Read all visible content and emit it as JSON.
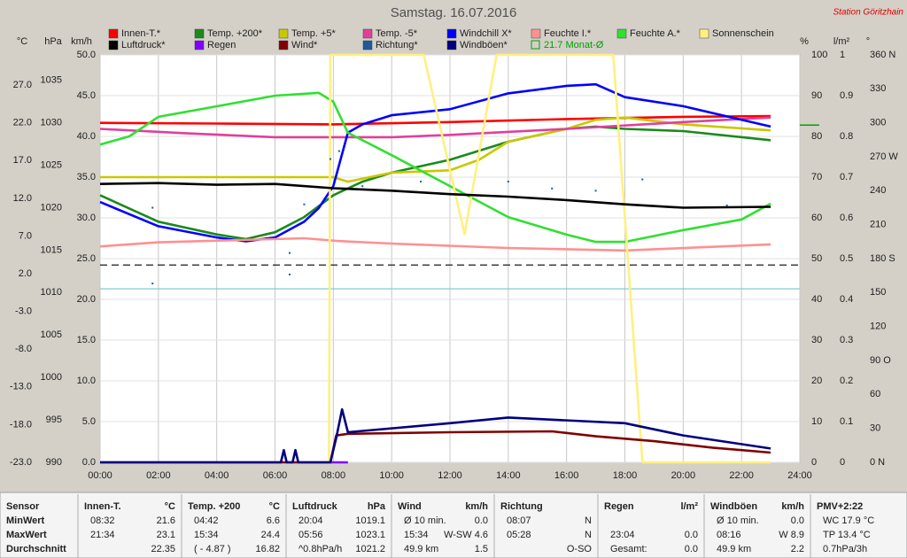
{
  "chart_data": {
    "type": "line",
    "title": "Samstag. 16.07.2016",
    "station": "Station Göritzhain",
    "xlim": [
      0,
      24
    ],
    "xticks": [
      {
        "value": 0,
        "label": "00:00"
      },
      {
        "value": 2,
        "label": "02:00"
      },
      {
        "value": 4,
        "label": "04:00"
      },
      {
        "value": 6,
        "label": "06:00"
      },
      {
        "value": 8,
        "label": "08:00"
      },
      {
        "value": 10,
        "label": "10:00"
      },
      {
        "value": 12,
        "label": "12:00"
      },
      {
        "value": 14,
        "label": "14:00"
      },
      {
        "value": 16,
        "label": "16:00"
      },
      {
        "value": 18,
        "label": "18:00"
      },
      {
        "value": 20,
        "label": "20:00"
      },
      {
        "value": 22,
        "label": "22:00"
      },
      {
        "value": 24,
        "label": "24:00"
      }
    ],
    "grid": true,
    "axes": [
      {
        "label": "°C",
        "side": "left",
        "lim": [
          -23,
          31
        ],
        "ticks": [
          {
            "value": -23,
            "label": "-23.0"
          },
          {
            "value": -18,
            "label": "-18.0"
          },
          {
            "value": -13,
            "label": "-13.0"
          },
          {
            "value": -8,
            "label": "-8.0"
          },
          {
            "value": -3,
            "label": "-3.0"
          },
          {
            "value": 2,
            "label": "2.0"
          },
          {
            "value": 7,
            "label": "7.0"
          },
          {
            "value": 12,
            "label": "12.0"
          },
          {
            "value": 17,
            "label": "17.0"
          },
          {
            "value": 22,
            "label": "22.0"
          },
          {
            "value": 27,
            "label": "27.0"
          }
        ]
      },
      {
        "label": "hPa",
        "side": "left",
        "lim": [
          990,
          1038
        ],
        "ticks": [
          990,
          995,
          1000,
          1005,
          1010,
          1015,
          1020,
          1025,
          1030,
          1035
        ]
      },
      {
        "label": "km/h",
        "side": "left",
        "grid": true,
        "lim": [
          0,
          50
        ],
        "ticks": [
          {
            "value": 0,
            "label": "0.0"
          },
          {
            "value": 5,
            "label": "5.0"
          },
          {
            "value": 10,
            "label": "10.0"
          },
          {
            "value": 15,
            "label": "15.0"
          },
          {
            "value": 20,
            "label": "20.0"
          },
          {
            "value": 25,
            "label": "25.0"
          },
          {
            "value": 30,
            "label": "30.0"
          },
          {
            "value": 35,
            "label": "35.0"
          },
          {
            "value": 40,
            "label": "40.0"
          },
          {
            "value": 45,
            "label": "45.0"
          },
          {
            "value": 50,
            "label": "50.0"
          }
        ]
      },
      {
        "label": "%",
        "side": "right",
        "lim": [
          0,
          100
        ],
        "ticks": [
          0,
          10,
          20,
          30,
          40,
          50,
          60,
          70,
          80,
          90,
          100
        ]
      },
      {
        "label": "l/m²",
        "side": "right",
        "lim": [
          0,
          1
        ],
        "ticks": [
          0,
          0.1,
          0.2,
          0.3,
          0.4,
          0.5,
          0.6,
          0.7,
          0.8,
          0.9,
          1
        ]
      },
      {
        "label": "°",
        "side": "right",
        "lim": [
          0,
          360
        ],
        "ticks": [
          {
            "value": 0,
            "label": "0 N"
          },
          30,
          60,
          {
            "value": 90,
            "label": "90 O"
          },
          120,
          150,
          {
            "value": 180,
            "label": "180 S"
          },
          210,
          240,
          {
            "value": 270,
            "label": "270 W"
          },
          300,
          330,
          {
            "value": 360,
            "label": "360 N"
          }
        ]
      }
    ],
    "reference_lines": [
      {
        "axis": "hPa",
        "value": 1013.25,
        "color": "#000000",
        "dashed": true
      },
      {
        "axis": "°C",
        "value": 0,
        "color": "#70c8c8"
      }
    ],
    "monthly_average": {
      "label": "21.7 Monat-Ø",
      "value": 21.7,
      "axis": "°C",
      "color": "#00a000"
    },
    "series": [
      {
        "name": "Innen-T.*",
        "color": "#ff0000",
        "axis": "°C",
        "x": [
          0,
          4,
          8,
          12,
          16,
          20,
          23
        ],
        "values": [
          22.0,
          21.9,
          21.8,
          22.1,
          22.5,
          22.8,
          22.9
        ]
      },
      {
        "name": "Temp. +200*",
        "color": "#1a8a1a",
        "axis": "°C",
        "x": [
          0,
          2,
          4,
          5,
          6,
          7,
          8,
          9,
          10,
          12,
          14,
          16,
          17,
          18,
          20,
          23
        ],
        "values": [
          12.4,
          8.9,
          7.2,
          6.6,
          7.5,
          9.5,
          12.4,
          14.2,
          15.4,
          17.1,
          19.5,
          21.2,
          21.5,
          21.2,
          20.9,
          19.7
        ]
      },
      {
        "name": "Temp. +5*",
        "color": "#c8c800",
        "axis": "°C",
        "x": [
          0,
          8,
          8.5,
          10,
          12,
          13,
          14,
          16,
          17,
          18,
          20,
          23
        ],
        "values": [
          14.8,
          14.8,
          14.2,
          15.4,
          15.7,
          17.1,
          19.5,
          21.2,
          22.4,
          22.7,
          21.8,
          21.0
        ]
      },
      {
        "name": "Temp. -5*",
        "color": "#e0409a",
        "axis": "°C",
        "x": [
          0,
          3,
          6,
          10,
          12,
          16,
          20,
          23
        ],
        "values": [
          21.2,
          20.6,
          20.1,
          20.1,
          20.4,
          21.2,
          22.1,
          22.7
        ]
      },
      {
        "name": "Windchill X*",
        "color": "#0000ff",
        "axis": "°C",
        "x": [
          0,
          2,
          4,
          5,
          6,
          7,
          7.5,
          8,
          8.5,
          9,
          10,
          12,
          14,
          16,
          17,
          18,
          20,
          23
        ],
        "values": [
          11.5,
          8.3,
          6.8,
          6.3,
          6.8,
          8.9,
          10.7,
          13.6,
          20.7,
          21.8,
          23.0,
          23.8,
          25.9,
          26.9,
          27.1,
          25.4,
          24.2,
          21.5
        ]
      },
      {
        "name": "Feuchte I.*",
        "color": "#ff9090",
        "axis": "%",
        "x": [
          0,
          2,
          7,
          8.2,
          10,
          14,
          18,
          23
        ],
        "values": [
          53,
          54,
          55,
          54.3,
          53.7,
          52.6,
          52,
          53.5
        ]
      },
      {
        "name": "Feuchte A.*",
        "color": "#30e030",
        "axis": "%",
        "x": [
          0,
          1,
          2,
          4,
          6,
          7.5,
          8,
          8.5,
          10,
          12,
          14,
          16,
          17,
          18,
          20,
          22,
          23
        ],
        "values": [
          78,
          80,
          84.8,
          87.4,
          90,
          90.7,
          88.5,
          80.9,
          75.4,
          67.8,
          60.2,
          55.9,
          54.1,
          54.1,
          57,
          59.6,
          63.5
        ]
      },
      {
        "name": "Sonnenschein",
        "color": "#fff080",
        "axis": "%",
        "x": [
          0,
          7.85,
          7.9,
          11.1,
          12.5,
          13.6,
          17.6,
          18.6,
          23
        ],
        "values": [
          0,
          0,
          100,
          100,
          56,
          100,
          100,
          0,
          0
        ]
      },
      {
        "name": "Luftdruck*",
        "color": "#000000",
        "axis": "hPa",
        "x": [
          0,
          2,
          4,
          6,
          8,
          10,
          12,
          14,
          16,
          18,
          20,
          23
        ],
        "values": [
          1022.8,
          1022.9,
          1022.7,
          1022.8,
          1022.3,
          1022.0,
          1021.6,
          1021.3,
          1020.9,
          1020.4,
          1020.0,
          1020.1
        ]
      },
      {
        "name": "Regen",
        "color": "#8000ff",
        "axis": "l/m²",
        "x": [
          7.9,
          8.5
        ],
        "values": [
          0,
          0
        ]
      },
      {
        "name": "Wind*",
        "color": "#800000",
        "axis": "km/h",
        "x": [
          0,
          7.9,
          8.1,
          8.5,
          12,
          15.5,
          17,
          19,
          21,
          23
        ],
        "values": [
          0,
          0,
          3.3,
          3.5,
          3.7,
          3.8,
          3.2,
          2.6,
          1.8,
          1.2
        ]
      },
      {
        "name": "Richtung*",
        "color": "#1f5a9a",
        "axis": "°",
        "type": "scatter",
        "x": [
          1.8,
          1.8,
          6.5,
          6.5,
          7,
          7.9,
          8.2,
          9,
          11,
          14,
          15.5,
          17,
          18.6,
          21.5
        ],
        "values": [
          225,
          158,
          185,
          166,
          228,
          268,
          275,
          244,
          248,
          248,
          242,
          240,
          250,
          227
        ]
      },
      {
        "name": "Windböen*",
        "color": "#000080",
        "axis": "km/h",
        "x": [
          0,
          6.2,
          6.3,
          6.4,
          6.6,
          6.7,
          6.8,
          7.9,
          8.1,
          8.3,
          8.5,
          12,
          14,
          18,
          20,
          23
        ],
        "values": [
          0,
          0,
          1.5,
          0,
          0,
          1.5,
          0,
          0,
          3,
          6.5,
          3.7,
          4.8,
          5.5,
          4.8,
          3.3,
          1.7
        ]
      }
    ]
  },
  "table": {
    "sections": [
      {
        "title": "Sensor",
        "rows": [
          {
            "left": "MinWert"
          },
          {
            "left": "MaxWert"
          },
          {
            "left": "Durchschnitt"
          }
        ]
      },
      {
        "title": "Innen-T.",
        "unit": "°C",
        "rows": [
          {
            "left": "08:32",
            "right": "21.6"
          },
          {
            "left": "21:34",
            "right": "23.1"
          },
          {
            "right": "22.35"
          }
        ]
      },
      {
        "title": "Temp. +200",
        "unit": "°C",
        "rows": [
          {
            "left": "04:42",
            "right": "6.6"
          },
          {
            "left": "15:34",
            "right": "24.4"
          },
          {
            "left": "( - 4.87 )",
            "right": "16.82"
          }
        ]
      },
      {
        "title": "Luftdruck",
        "unit": "hPa",
        "rows": [
          {
            "left": "20:04",
            "right": "1019.1"
          },
          {
            "left": "05:56",
            "right": "1023.1"
          },
          {
            "left": "^0.8hPa/h",
            "right": "1021.2"
          }
        ]
      },
      {
        "title": "Wind",
        "unit": "km/h",
        "rows": [
          {
            "left": "Ø 10 min.",
            "right": "0.0"
          },
          {
            "left": "15:34",
            "right": "W-SW 4.6"
          },
          {
            "left": "49.9 km",
            "right": "1.5"
          }
        ]
      },
      {
        "title": "Richtung",
        "rows": [
          {
            "left": "08:07",
            "right": "N"
          },
          {
            "left": "05:28",
            "right": "N"
          },
          {
            "right": "O-SO"
          }
        ]
      },
      {
        "title": "Regen",
        "unit": "l/m²",
        "rows": [
          {},
          {
            "left": "23:04",
            "right": "0.0"
          },
          {
            "left": "Gesamt:",
            "right": "0.0"
          }
        ]
      },
      {
        "title": "Windböen",
        "unit": "km/h",
        "rows": [
          {
            "left": "Ø 10 min.",
            "right": "0.0"
          },
          {
            "left": "08:16",
            "right": "W 8.9"
          },
          {
            "left": "49.9 km",
            "right": "2.2"
          }
        ]
      },
      {
        "title": "PMV+2:22",
        "rows": [
          {
            "left": "WC 17.9 °C"
          },
          {
            "left": "TP 13.4 °C"
          },
          {
            "left": "0.7hPa/3h"
          }
        ]
      }
    ]
  }
}
